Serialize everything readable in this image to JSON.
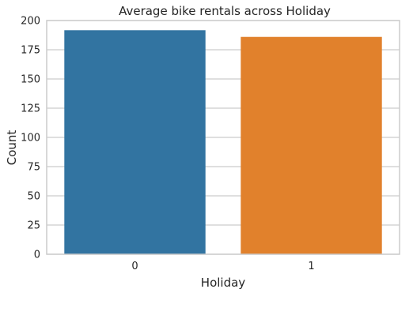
{
  "chart_data": {
    "type": "bar",
    "title": "Average bike rentals across Holiday",
    "xlabel": "Holiday",
    "ylabel": "Count",
    "categories": [
      "0",
      "1"
    ],
    "values": [
      191.7,
      186.0
    ],
    "ylim": [
      0,
      200
    ],
    "yticks": [
      0,
      25,
      50,
      75,
      100,
      125,
      150,
      175,
      200
    ],
    "grid": true,
    "colors": [
      "#3274a1",
      "#e1812c"
    ],
    "grid_color": "#cccccc",
    "spine_color": "#cccccc"
  }
}
